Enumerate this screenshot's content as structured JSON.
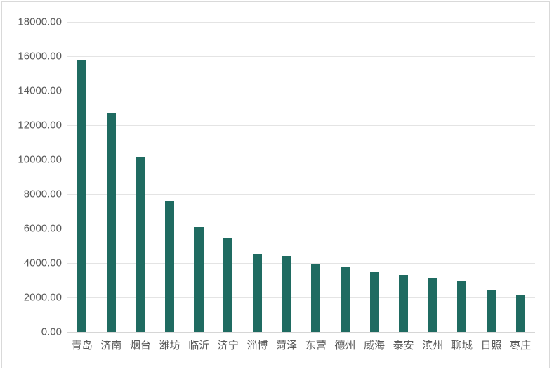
{
  "chart_data": {
    "type": "bar",
    "title": "",
    "xlabel": "",
    "ylabel": "",
    "categories": [
      "青岛",
      "济南",
      "烟台",
      "潍坊",
      "临沂",
      "济宁",
      "淄博",
      "菏泽",
      "东营",
      "德州",
      "威海",
      "泰安",
      "滨州",
      "聊城",
      "日照",
      "枣庄"
    ],
    "values": [
      15750,
      12750,
      10150,
      7600,
      6100,
      5470,
      4520,
      4400,
      3900,
      3780,
      3490,
      3300,
      3110,
      2930,
      2440,
      2180
    ],
    "ylim": [
      0,
      18000
    ],
    "y_tick_step": 2000,
    "y_tick_labels": [
      "0.00",
      "2000.00",
      "4000.00",
      "6000.00",
      "8000.00",
      "10000.00",
      "12000.00",
      "14000.00",
      "16000.00",
      "18000.00"
    ],
    "grid": true,
    "legend": "none",
    "bar_color": "#1f6b61",
    "label_color": "#595959",
    "gridline_color": "#e4e4e4",
    "axis_line_color": "#d6d6d6",
    "frame_border_color": "#d9d9d9",
    "background_color": "#ffffff"
  }
}
